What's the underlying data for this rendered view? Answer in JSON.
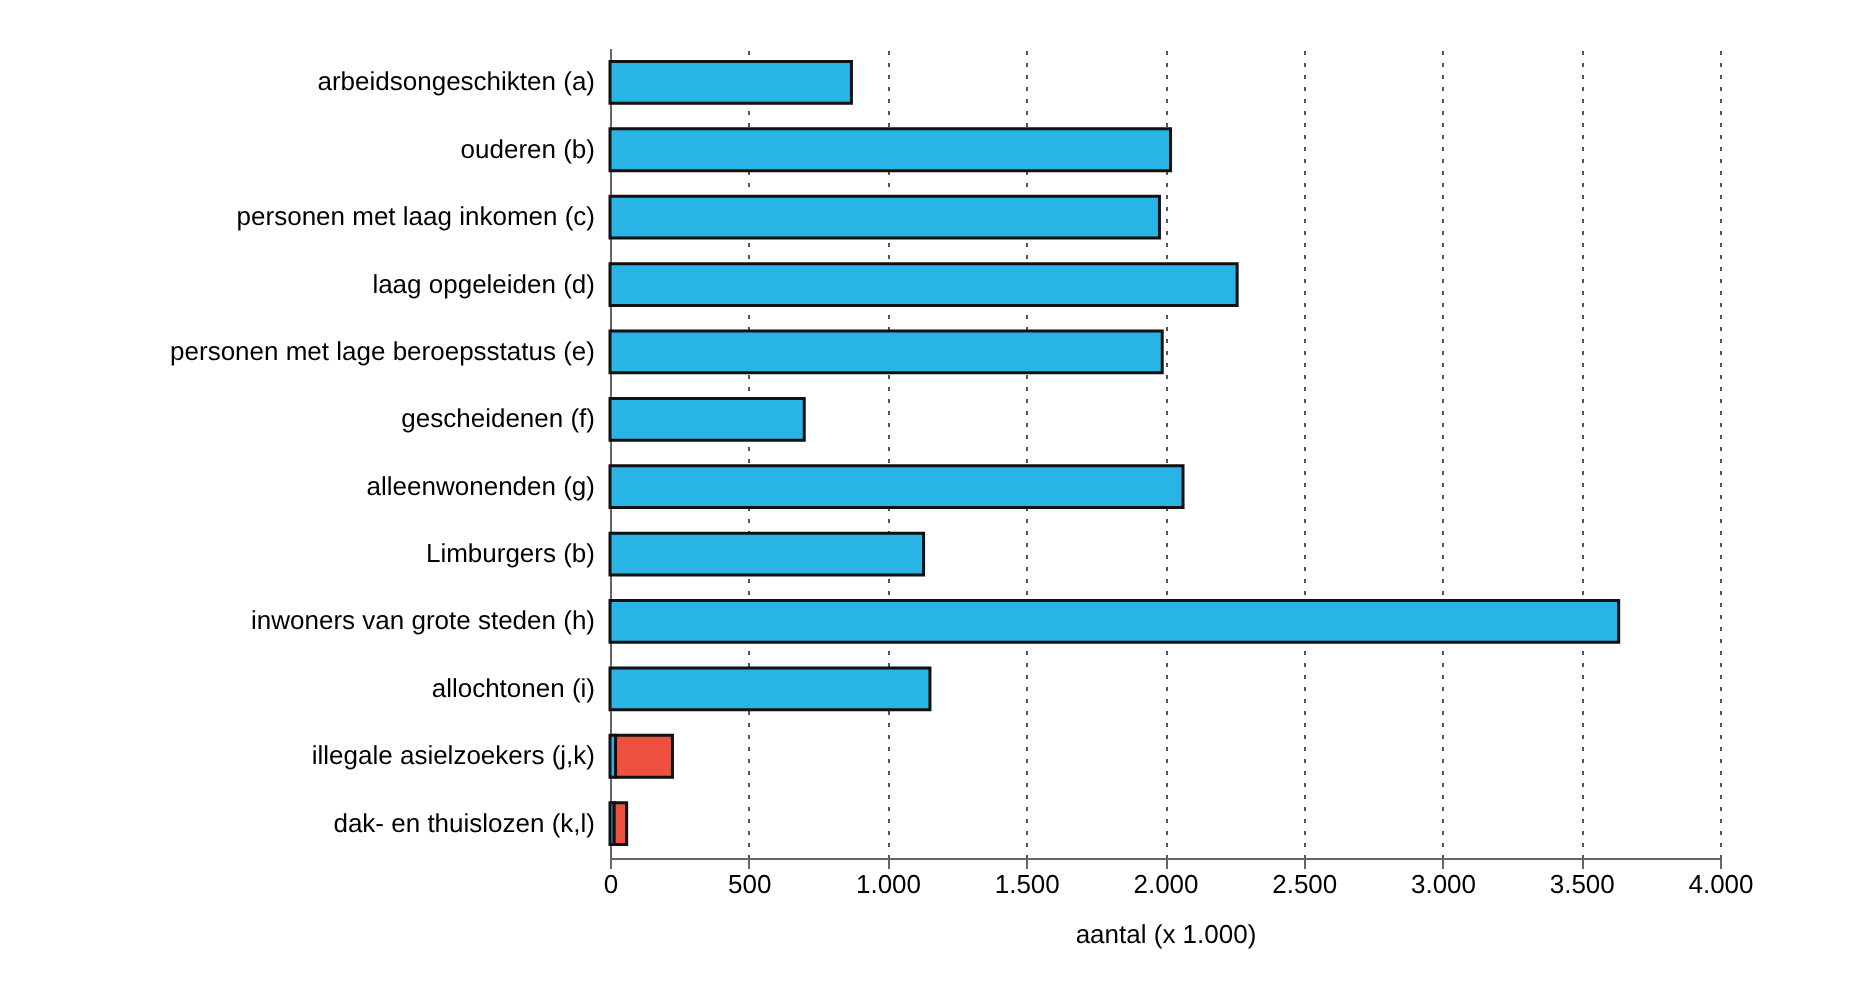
{
  "chart_data": {
    "type": "bar",
    "orientation": "horizontal",
    "stacked": true,
    "xlabel": "aantal (x 1.000)",
    "categories": [
      "arbeidsongeschikten (a)",
      "ouderen  (b)",
      "personen met laag inkomen (c)",
      "laag opgeleiden (d)",
      "personen met lage beroepsstatus (e)",
      "gescheidenen (f)",
      "alleenwonenden (g)",
      "Limburgers (b)",
      "inwoners van grote steden (h)",
      "allochtonen (i)",
      "illegale asielzoekers (j,k)",
      "dak- en thuislozen (k,l)"
    ],
    "series": [
      {
        "color": "#29b4e6",
        "values": [
          870,
          2020,
          1980,
          2260,
          1990,
          700,
          2065,
          1130,
          3635,
          1153,
          20,
          15
        ]
      },
      {
        "color": "#ee5040",
        "values": [
          null,
          null,
          null,
          null,
          null,
          null,
          null,
          null,
          null,
          null,
          205,
          45
        ]
      }
    ],
    "xlim": [
      0,
      4000
    ],
    "xticks": [
      {
        "value": 0,
        "label": "0"
      },
      {
        "value": 500,
        "label": "500"
      },
      {
        "value": 1000,
        "label": "1.000"
      },
      {
        "value": 1500,
        "label": "1.500"
      },
      {
        "value": 2000,
        "label": "2.000"
      },
      {
        "value": 2500,
        "label": "2.500"
      },
      {
        "value": 3000,
        "label": "3.000"
      },
      {
        "value": 3500,
        "label": "3.500"
      },
      {
        "value": 4000,
        "label": "4.000"
      }
    ],
    "grid": "x"
  }
}
